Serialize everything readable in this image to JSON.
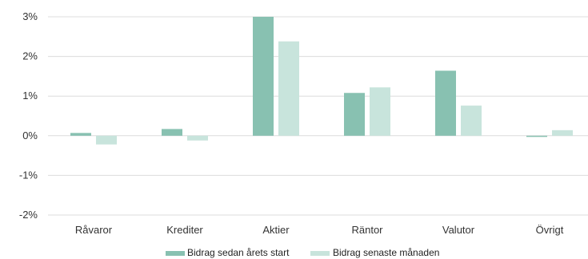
{
  "chart_data": {
    "type": "bar",
    "categories": [
      "Råvaror",
      "Krediter",
      "Aktier",
      "Räntor",
      "Valutor",
      "Övrigt"
    ],
    "series": [
      {
        "name": "Bidrag sedan årets start",
        "color": "#88c1b1",
        "values": [
          0.07,
          0.17,
          3.0,
          1.08,
          1.64,
          -0.03
        ]
      },
      {
        "name": "Bidrag senaste månaden",
        "color": "#c8e4dc",
        "values": [
          -0.22,
          -0.12,
          2.38,
          1.22,
          0.76,
          0.14
        ]
      }
    ],
    "yticks": [
      {
        "value": 3,
        "label": "3%"
      },
      {
        "value": 2,
        "label": "2%"
      },
      {
        "value": 1,
        "label": "1%"
      },
      {
        "value": 0,
        "label": "0%"
      },
      {
        "value": -1,
        "label": "-1%"
      },
      {
        "value": -2,
        "label": "-2%"
      }
    ],
    "ylim": [
      -2,
      3
    ],
    "grid": true,
    "legend_position": "bottom"
  }
}
